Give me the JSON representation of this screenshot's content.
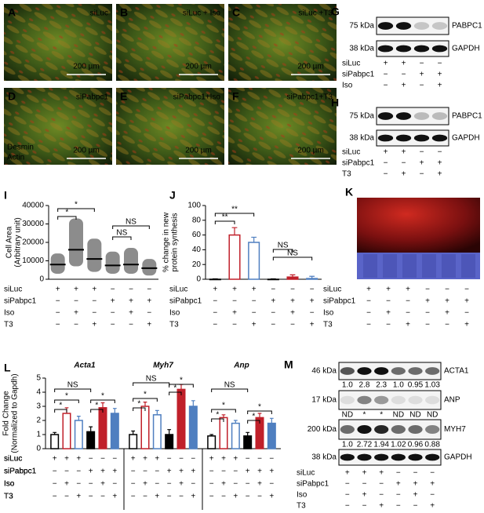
{
  "images": [
    {
      "letter": "A",
      "label": "siLuc",
      "scale": "200 µm"
    },
    {
      "letter": "B",
      "label": "siLuc + Iso",
      "scale": "200 µm"
    },
    {
      "letter": "C",
      "label": "siLuc +T3",
      "scale": "200 µm"
    },
    {
      "letter": "D",
      "label": "siPabpc1",
      "scale": "200 µm"
    },
    {
      "letter": "E",
      "label": "siPabpc1+Iso",
      "scale": "200 µm"
    },
    {
      "letter": "F",
      "label": "siPabpc1+T3",
      "scale": "200 µm"
    }
  ],
  "stains": [
    "Desmin",
    "Actin"
  ],
  "blots": [
    {
      "letter": "G",
      "bands": [
        {
          "marker": "75 kDa",
          "name": "PABPC1"
        },
        {
          "marker": "38 kDa",
          "name": "GAPDH"
        }
      ],
      "conditions": [
        {
          "name": "siLuc",
          "signs": [
            "+",
            "+",
            "−",
            "−"
          ]
        },
        {
          "name": "siPabpc1",
          "signs": [
            "−",
            "−",
            "+",
            "+"
          ]
        },
        {
          "name": "Iso",
          "signs": [
            "−",
            "+",
            "−",
            "+"
          ]
        }
      ]
    },
    {
      "letter": "H",
      "bands": [
        {
          "marker": "75 kDa",
          "name": "PABPC1"
        },
        {
          "marker": "38 kDa",
          "name": "GAPDH"
        }
      ],
      "conditions": [
        {
          "name": "siLuc",
          "signs": [
            "+",
            "+",
            "−",
            "−"
          ]
        },
        {
          "name": "siPabpc1",
          "signs": [
            "−",
            "−",
            "+",
            "+"
          ]
        },
        {
          "name": "T3",
          "signs": [
            "−",
            "+",
            "−",
            "+"
          ]
        }
      ]
    },
    {
      "letter": "M",
      "bands": [
        {
          "marker": "46 kDa",
          "name": "ACTA1",
          "quant": [
            "1.0",
            "2.8",
            "2.3",
            "1.0",
            "0.95",
            "1.03"
          ]
        },
        {
          "marker": "17 kDa",
          "name": "ANP",
          "quant": [
            "ND",
            "*",
            "*",
            "ND",
            "ND",
            "ND"
          ]
        },
        {
          "marker": "200 kDa",
          "name": "MYH7",
          "quant": [
            "1.0",
            "2.72",
            "1.94",
            "1.02",
            "0.96",
            "0.88"
          ]
        },
        {
          "marker": "38 kDa",
          "name": "GAPDH"
        }
      ],
      "conditions": [
        {
          "name": "siLuc",
          "signs": [
            "+",
            "+",
            "+",
            "−",
            "−",
            "−"
          ]
        },
        {
          "name": "siPabpc1",
          "signs": [
            "−",
            "−",
            "−",
            "+",
            "+",
            "+"
          ]
        },
        {
          "name": "Iso",
          "signs": [
            "−",
            "+",
            "−",
            "−",
            "+",
            "−"
          ]
        },
        {
          "name": "T3",
          "signs": [
            "−",
            "−",
            "+",
            "−",
            "−",
            "+"
          ]
        }
      ]
    }
  ],
  "gel": {
    "letter": "K",
    "conditions": [
      {
        "name": "siLuc",
        "signs": [
          "+",
          "+",
          "+",
          "−",
          "−",
          "−"
        ]
      },
      {
        "name": "siPabpc1",
        "signs": [
          "−",
          "−",
          "−",
          "+",
          "+",
          "+"
        ]
      },
      {
        "name": "Iso",
        "signs": [
          "−",
          "+",
          "−",
          "−",
          "+",
          "−"
        ]
      },
      {
        "name": "T3",
        "signs": [
          "−",
          "−",
          "+",
          "−",
          "−",
          "+"
        ]
      }
    ]
  },
  "chart_data": [
    {
      "letter": "I",
      "type": "scatter",
      "y_label": [
        "Cell Area",
        "(Arbitrary unit)"
      ],
      "values": [
        8000,
        16000,
        11000,
        7500,
        8000,
        6000
      ],
      "min": [
        3000,
        7000,
        4000,
        3000,
        3000,
        2000
      ],
      "max": [
        14000,
        33000,
        22000,
        15000,
        17000,
        11000
      ],
      "color": "#000000",
      "ylim": [
        0,
        40000
      ],
      "yticks": [
        0,
        10000,
        20000,
        30000,
        40000
      ],
      "annotations": [
        "*",
        "*",
        "NS",
        "NS"
      ],
      "conditions": [
        {
          "name": "siLuc",
          "signs": [
            "+",
            "+",
            "+",
            "−",
            "−",
            "−"
          ]
        },
        {
          "name": "siPabpc1",
          "signs": [
            "−",
            "−",
            "−",
            "+",
            "+",
            "+"
          ]
        },
        {
          "name": "Iso",
          "signs": [
            "−",
            "+",
            "−",
            "−",
            "+",
            "−"
          ]
        },
        {
          "name": "T3",
          "signs": [
            "−",
            "−",
            "+",
            "−",
            "−",
            "+"
          ]
        }
      ]
    },
    {
      "letter": "J",
      "type": "bar",
      "y_label": [
        "% change in new",
        "protein synthesis"
      ],
      "values": [
        0,
        60,
        50,
        0,
        3,
        1
      ],
      "errors": [
        0.5,
        10,
        7,
        0.5,
        3,
        3
      ],
      "fills": [
        "#ffffff",
        "#ffffff",
        "#ffffff",
        "#000000",
        "#c0202a",
        "#4f7fc0"
      ],
      "strokes": [
        "#000000",
        "#c0202a",
        "#4f7fc0",
        "#000000",
        "#c0202a",
        "#4f7fc0"
      ],
      "ylim": [
        0,
        100
      ],
      "yticks": [
        0,
        20,
        40,
        60,
        80,
        100
      ],
      "annotations": [
        "**",
        "**",
        "NS",
        "NS"
      ],
      "conditions": [
        {
          "name": "siLuc",
          "signs": [
            "+",
            "+",
            "+",
            "−",
            "−",
            "−"
          ]
        },
        {
          "name": "siPabpc1",
          "signs": [
            "−",
            "−",
            "−",
            "+",
            "+",
            "+"
          ]
        },
        {
          "name": "Iso",
          "signs": [
            "−",
            "+",
            "−",
            "−",
            "+",
            "−"
          ]
        },
        {
          "name": "T3",
          "signs": [
            "−",
            "−",
            "+",
            "−",
            "−",
            "+"
          ]
        }
      ]
    },
    {
      "letter": "L",
      "type": "grouped_bar",
      "y_label": [
        "Fold Change",
        "(Normalized to Gapdh)"
      ],
      "groups": [
        {
          "name": "Acta1",
          "values": [
            1.0,
            2.5,
            2.0,
            1.2,
            2.9,
            2.5
          ],
          "errors": [
            0.15,
            0.4,
            0.3,
            0.35,
            0.35,
            0.35
          ]
        },
        {
          "name": "Myh7",
          "values": [
            1.0,
            3.0,
            2.4,
            1.0,
            4.2,
            3.0
          ],
          "errors": [
            0.25,
            0.3,
            0.3,
            0.35,
            0.35,
            0.4
          ]
        },
        {
          "name": "Anp",
          "values": [
            0.9,
            2.2,
            1.8,
            0.9,
            2.2,
            1.8
          ],
          "errors": [
            0.1,
            0.2,
            0.2,
            0.25,
            0.3,
            0.35
          ]
        }
      ],
      "fills": [
        "#ffffff",
        "#ffffff",
        "#ffffff",
        "#000000",
        "#c0202a",
        "#4f7fc0"
      ],
      "strokes": [
        "#000000",
        "#c0202a",
        "#4f7fc0",
        "#000000",
        "#c0202a",
        "#4f7fc0"
      ],
      "ylim": [
        0,
        5
      ],
      "yticks": [
        0,
        1,
        2,
        3,
        4,
        5
      ],
      "annotations": [
        [
          "NS",
          "*",
          "*",
          "*",
          "*"
        ],
        [
          "NS",
          "*",
          "*",
          "*",
          "*"
        ],
        [
          "NS",
          "*",
          "*",
          "*",
          "*"
        ]
      ],
      "conditions": [
        {
          "name": "siLuc",
          "signs": [
            "+",
            "+",
            "+",
            "−",
            "−",
            "−"
          ]
        },
        {
          "name": "siPabpc1",
          "signs": [
            "−",
            "−",
            "−",
            "+",
            "+",
            "+"
          ]
        },
        {
          "name": "Iso",
          "signs": [
            "−",
            "+",
            "−",
            "−",
            "+",
            "−"
          ]
        },
        {
          "name": "T3",
          "signs": [
            "−",
            "−",
            "+",
            "−",
            "−",
            "+"
          ]
        }
      ]
    }
  ]
}
